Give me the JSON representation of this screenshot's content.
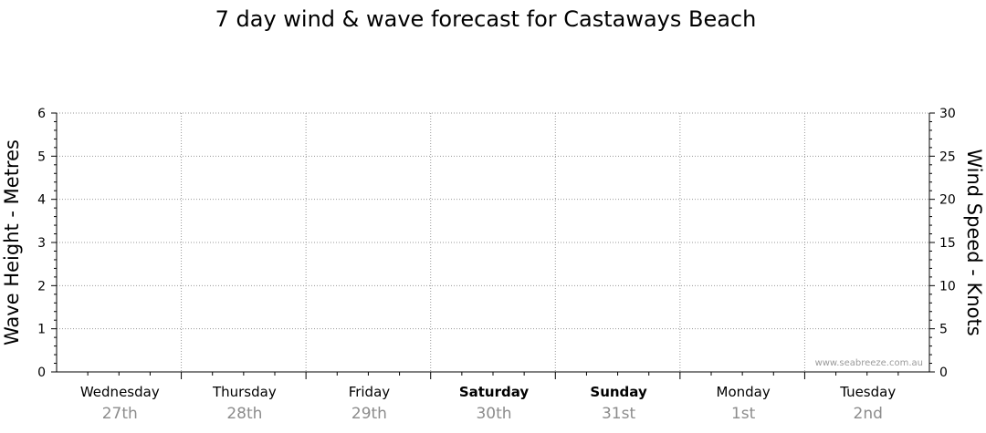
{
  "chart_data": {
    "type": "line",
    "title": "7 day wind & wave forecast for Castaways Beach",
    "y_left": {
      "label": "Wave Height - Metres",
      "range": [
        0,
        6
      ],
      "ticks": [
        "0",
        "1",
        "2",
        "3",
        "4",
        "5",
        "6"
      ]
    },
    "y_right": {
      "label": "Wind Speed - Knots",
      "range": [
        0,
        30
      ],
      "ticks": [
        "0",
        "5",
        "10",
        "15",
        "20",
        "25",
        "30"
      ]
    },
    "days": [
      {
        "name": "Wednesday",
        "date": "27th",
        "bold": false
      },
      {
        "name": "Thursday",
        "date": "28th",
        "bold": false
      },
      {
        "name": "Friday",
        "date": "29th",
        "bold": false
      },
      {
        "name": "Saturday",
        "date": "30th",
        "bold": true
      },
      {
        "name": "Sunday",
        "date": "31st",
        "bold": true
      },
      {
        "name": "Monday",
        "date": "1st",
        "bold": false
      },
      {
        "name": "Tuesday",
        "date": "2nd",
        "bold": false
      }
    ],
    "series": [],
    "grid": true,
    "watermark": "www.seabreeze.com.au",
    "colors": {
      "grid": "#9a9a9a",
      "axis": "#000000",
      "date_text": "#8c8c8c",
      "watermark": "#9a9a9a"
    }
  }
}
